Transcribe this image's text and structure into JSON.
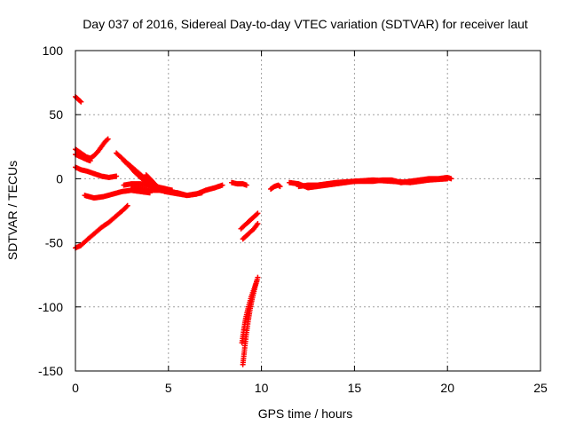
{
  "chart_data": {
    "type": "scatter",
    "title": "Day 037 of 2016, Sidereal Day-to-day VTEC variation (SDTVAR) for receiver laut",
    "xlabel": "GPS time / hours",
    "ylabel": "SDTVAR / TECUs",
    "xlim": [
      0,
      25
    ],
    "ylim": [
      -150,
      100
    ],
    "xticks": [
      0,
      5,
      10,
      15,
      20,
      25
    ],
    "yticks": [
      -150,
      -100,
      -50,
      0,
      50,
      100
    ],
    "grid": true,
    "marker": "+",
    "color": "#ff0000",
    "series": [
      {
        "points": [
          [
            0.0,
            64
          ],
          [
            0.15,
            62
          ],
          [
            0.3,
            60
          ]
        ]
      },
      {
        "points": [
          [
            0.0,
            23
          ],
          [
            0.3,
            20
          ],
          [
            0.6,
            17
          ],
          [
            0.8,
            16
          ],
          [
            1.0,
            18
          ],
          [
            1.2,
            21
          ],
          [
            1.4,
            25
          ],
          [
            1.6,
            29
          ],
          [
            1.75,
            31
          ]
        ]
      },
      {
        "points": [
          [
            0.0,
            19
          ],
          [
            0.3,
            17
          ],
          [
            0.6,
            15
          ],
          [
            0.8,
            14
          ]
        ]
      },
      {
        "points": [
          [
            0.0,
            9
          ],
          [
            0.3,
            7
          ],
          [
            0.6,
            6
          ],
          [
            1.0,
            4
          ],
          [
            1.4,
            2
          ],
          [
            1.8,
            1
          ],
          [
            2.2,
            2
          ]
        ]
      },
      {
        "points": [
          [
            0.0,
            -54
          ],
          [
            0.3,
            -52
          ],
          [
            0.6,
            -48
          ],
          [
            1.0,
            -43
          ],
          [
            1.4,
            -38
          ],
          [
            1.8,
            -34
          ],
          [
            2.2,
            -29
          ],
          [
            2.6,
            -24
          ],
          [
            2.8,
            -21
          ]
        ]
      },
      {
        "points": [
          [
            0.5,
            -13
          ],
          [
            1.0,
            -15
          ],
          [
            1.5,
            -14
          ],
          [
            2.0,
            -12
          ],
          [
            2.5,
            -10
          ],
          [
            3.0,
            -9
          ],
          [
            3.5,
            -10
          ],
          [
            4.0,
            -11
          ]
        ]
      },
      {
        "points": [
          [
            2.2,
            20
          ],
          [
            2.5,
            16
          ],
          [
            2.8,
            12
          ],
          [
            3.2,
            7
          ],
          [
            3.6,
            2
          ],
          [
            4.0,
            -3
          ],
          [
            4.4,
            -7
          ],
          [
            4.8,
            -10
          ],
          [
            5.2,
            -11
          ],
          [
            5.6,
            -12
          ],
          [
            6.0,
            -13
          ],
          [
            6.4,
            -12
          ],
          [
            6.8,
            -11
          ]
        ]
      },
      {
        "points": [
          [
            2.6,
            14
          ],
          [
            2.9,
            10
          ],
          [
            3.2,
            5
          ],
          [
            3.5,
            1
          ],
          [
            3.8,
            -3
          ],
          [
            4.1,
            -6
          ],
          [
            4.5,
            -8
          ]
        ]
      },
      {
        "points": [
          [
            3.8,
            3
          ],
          [
            4.0,
            0
          ],
          [
            4.2,
            -3
          ],
          [
            4.4,
            -6
          ]
        ]
      },
      {
        "points": [
          [
            2.6,
            -5
          ],
          [
            3.0,
            -4
          ],
          [
            3.5,
            -4
          ],
          [
            4.0,
            -5
          ],
          [
            4.6,
            -7
          ],
          [
            5.2,
            -9
          ]
        ]
      },
      {
        "points": [
          [
            3.0,
            -8
          ],
          [
            3.5,
            -8
          ],
          [
            4.0,
            -9
          ],
          [
            4.5,
            -9
          ],
          [
            5.0,
            -10
          ],
          [
            5.5,
            -11
          ],
          [
            6.0,
            -13
          ],
          [
            6.5,
            -12
          ],
          [
            7.0,
            -9
          ],
          [
            7.5,
            -7
          ],
          [
            7.9,
            -5
          ]
        ]
      },
      {
        "points": [
          [
            8.4,
            -3
          ],
          [
            8.7,
            -4
          ],
          [
            9.0,
            -4
          ],
          [
            9.2,
            -5
          ]
        ]
      },
      {
        "points": [
          [
            8.9,
            -39
          ],
          [
            9.2,
            -35
          ],
          [
            9.5,
            -31
          ],
          [
            9.8,
            -27
          ]
        ]
      },
      {
        "points": [
          [
            9.0,
            -47
          ],
          [
            9.3,
            -43
          ],
          [
            9.6,
            -39
          ],
          [
            9.8,
            -35
          ]
        ]
      },
      {
        "points": [
          [
            9.0,
            -145
          ],
          [
            9.1,
            -132
          ],
          [
            9.2,
            -120
          ],
          [
            9.3,
            -110
          ],
          [
            9.4,
            -101
          ],
          [
            9.5,
            -94
          ],
          [
            9.6,
            -88
          ],
          [
            9.7,
            -82
          ],
          [
            9.8,
            -77
          ]
        ]
      },
      {
        "points": [
          [
            8.95,
            -128
          ],
          [
            9.05,
            -118
          ],
          [
            9.15,
            -109
          ],
          [
            9.3,
            -100
          ],
          [
            9.45,
            -92
          ],
          [
            9.6,
            -86
          ],
          [
            9.75,
            -80
          ]
        ]
      },
      {
        "points": [
          [
            10.5,
            -8
          ],
          [
            10.7,
            -6
          ],
          [
            10.9,
            -5
          ],
          [
            11.0,
            -6
          ]
        ]
      },
      {
        "points": [
          [
            11.5,
            -3
          ],
          [
            12.0,
            -4
          ],
          [
            12.5,
            -7
          ],
          [
            13.0,
            -6
          ],
          [
            13.5,
            -5
          ],
          [
            14.0,
            -4
          ],
          [
            14.5,
            -3
          ],
          [
            15.0,
            -2
          ],
          [
            15.5,
            -2
          ],
          [
            16.0,
            -2
          ],
          [
            16.5,
            -1
          ],
          [
            17.0,
            -1
          ],
          [
            17.5,
            -3
          ],
          [
            18.0,
            -2
          ],
          [
            18.5,
            -1
          ],
          [
            19.0,
            0
          ],
          [
            19.5,
            0
          ],
          [
            20.0,
            1
          ],
          [
            20.2,
            0
          ]
        ]
      },
      {
        "points": [
          [
            12.0,
            -6
          ],
          [
            12.5,
            -5
          ],
          [
            13.0,
            -5
          ],
          [
            13.5,
            -4
          ],
          [
            14.0,
            -3
          ],
          [
            15.0,
            -2
          ],
          [
            16.0,
            -1
          ],
          [
            17.0,
            -2
          ],
          [
            18.0,
            -3
          ],
          [
            19.0,
            -1
          ],
          [
            20.0,
            0
          ]
        ]
      }
    ]
  }
}
